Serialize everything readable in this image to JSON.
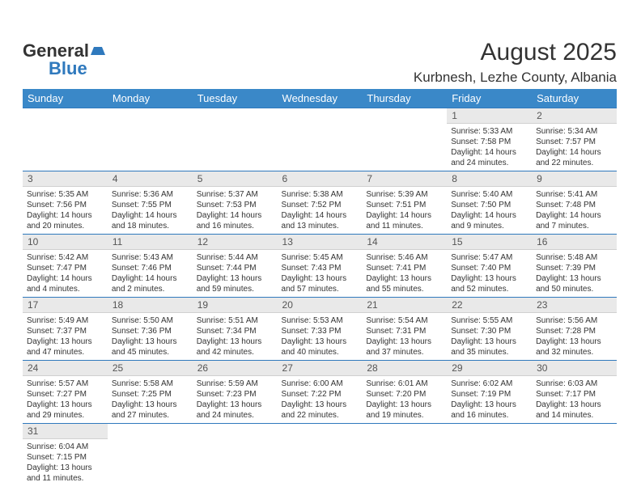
{
  "logo": {
    "part1": "General",
    "part2": "Blue"
  },
  "header": {
    "month_title": "August 2025",
    "location": "Kurbnesh, Lezhe County, Albania",
    "title_fontsize": 30,
    "location_fontsize": 17,
    "title_color": "#333333"
  },
  "calendar": {
    "header_bg": "#3a88c8",
    "header_text_color": "#ffffff",
    "daynum_bg": "#e9e9e9",
    "border_color": "#2f79bd",
    "cell_text_color": "#333333",
    "day_headers": [
      "Sunday",
      "Monday",
      "Tuesday",
      "Wednesday",
      "Thursday",
      "Friday",
      "Saturday"
    ],
    "weeks": [
      [
        null,
        null,
        null,
        null,
        null,
        {
          "n": "1",
          "sr": "5:33 AM",
          "ss": "7:58 PM",
          "dl": "14 hours and 24 minutes."
        },
        {
          "n": "2",
          "sr": "5:34 AM",
          "ss": "7:57 PM",
          "dl": "14 hours and 22 minutes."
        }
      ],
      [
        {
          "n": "3",
          "sr": "5:35 AM",
          "ss": "7:56 PM",
          "dl": "14 hours and 20 minutes."
        },
        {
          "n": "4",
          "sr": "5:36 AM",
          "ss": "7:55 PM",
          "dl": "14 hours and 18 minutes."
        },
        {
          "n": "5",
          "sr": "5:37 AM",
          "ss": "7:53 PM",
          "dl": "14 hours and 16 minutes."
        },
        {
          "n": "6",
          "sr": "5:38 AM",
          "ss": "7:52 PM",
          "dl": "14 hours and 13 minutes."
        },
        {
          "n": "7",
          "sr": "5:39 AM",
          "ss": "7:51 PM",
          "dl": "14 hours and 11 minutes."
        },
        {
          "n": "8",
          "sr": "5:40 AM",
          "ss": "7:50 PM",
          "dl": "14 hours and 9 minutes."
        },
        {
          "n": "9",
          "sr": "5:41 AM",
          "ss": "7:48 PM",
          "dl": "14 hours and 7 minutes."
        }
      ],
      [
        {
          "n": "10",
          "sr": "5:42 AM",
          "ss": "7:47 PM",
          "dl": "14 hours and 4 minutes."
        },
        {
          "n": "11",
          "sr": "5:43 AM",
          "ss": "7:46 PM",
          "dl": "14 hours and 2 minutes."
        },
        {
          "n": "12",
          "sr": "5:44 AM",
          "ss": "7:44 PM",
          "dl": "13 hours and 59 minutes."
        },
        {
          "n": "13",
          "sr": "5:45 AM",
          "ss": "7:43 PM",
          "dl": "13 hours and 57 minutes."
        },
        {
          "n": "14",
          "sr": "5:46 AM",
          "ss": "7:41 PM",
          "dl": "13 hours and 55 minutes."
        },
        {
          "n": "15",
          "sr": "5:47 AM",
          "ss": "7:40 PM",
          "dl": "13 hours and 52 minutes."
        },
        {
          "n": "16",
          "sr": "5:48 AM",
          "ss": "7:39 PM",
          "dl": "13 hours and 50 minutes."
        }
      ],
      [
        {
          "n": "17",
          "sr": "5:49 AM",
          "ss": "7:37 PM",
          "dl": "13 hours and 47 minutes."
        },
        {
          "n": "18",
          "sr": "5:50 AM",
          "ss": "7:36 PM",
          "dl": "13 hours and 45 minutes."
        },
        {
          "n": "19",
          "sr": "5:51 AM",
          "ss": "7:34 PM",
          "dl": "13 hours and 42 minutes."
        },
        {
          "n": "20",
          "sr": "5:53 AM",
          "ss": "7:33 PM",
          "dl": "13 hours and 40 minutes."
        },
        {
          "n": "21",
          "sr": "5:54 AM",
          "ss": "7:31 PM",
          "dl": "13 hours and 37 minutes."
        },
        {
          "n": "22",
          "sr": "5:55 AM",
          "ss": "7:30 PM",
          "dl": "13 hours and 35 minutes."
        },
        {
          "n": "23",
          "sr": "5:56 AM",
          "ss": "7:28 PM",
          "dl": "13 hours and 32 minutes."
        }
      ],
      [
        {
          "n": "24",
          "sr": "5:57 AM",
          "ss": "7:27 PM",
          "dl": "13 hours and 29 minutes."
        },
        {
          "n": "25",
          "sr": "5:58 AM",
          "ss": "7:25 PM",
          "dl": "13 hours and 27 minutes."
        },
        {
          "n": "26",
          "sr": "5:59 AM",
          "ss": "7:23 PM",
          "dl": "13 hours and 24 minutes."
        },
        {
          "n": "27",
          "sr": "6:00 AM",
          "ss": "7:22 PM",
          "dl": "13 hours and 22 minutes."
        },
        {
          "n": "28",
          "sr": "6:01 AM",
          "ss": "7:20 PM",
          "dl": "13 hours and 19 minutes."
        },
        {
          "n": "29",
          "sr": "6:02 AM",
          "ss": "7:19 PM",
          "dl": "13 hours and 16 minutes."
        },
        {
          "n": "30",
          "sr": "6:03 AM",
          "ss": "7:17 PM",
          "dl": "13 hours and 14 minutes."
        }
      ],
      [
        {
          "n": "31",
          "sr": "6:04 AM",
          "ss": "7:15 PM",
          "dl": "13 hours and 11 minutes."
        },
        null,
        null,
        null,
        null,
        null,
        null
      ]
    ]
  }
}
